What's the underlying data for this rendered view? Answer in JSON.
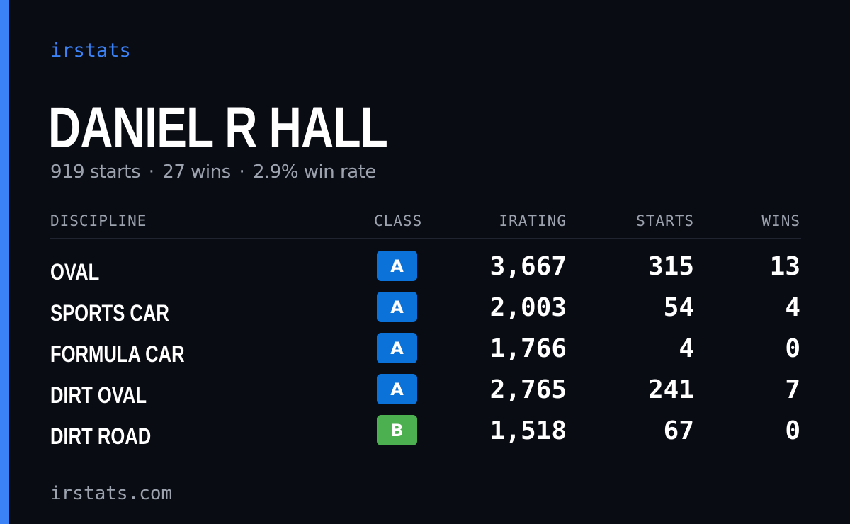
{
  "brand": "irstats",
  "player": {
    "name": "DANIEL R HALL"
  },
  "summary": {
    "starts": "919 starts",
    "wins": "27 wins",
    "win_rate": "2.9% win rate",
    "separator": "·"
  },
  "table": {
    "headers": {
      "discipline": "DISCIPLINE",
      "class": "CLASS",
      "irating": "IRATING",
      "starts": "STARTS",
      "wins": "WINS"
    },
    "rows": [
      {
        "discipline": "OVAL",
        "class": "A",
        "class_color": "#0a72d8",
        "irating": "3,667",
        "starts": "315",
        "wins": "13"
      },
      {
        "discipline": "SPORTS CAR",
        "class": "A",
        "class_color": "#0a72d8",
        "irating": "2,003",
        "starts": "54",
        "wins": "4"
      },
      {
        "discipline": "FORMULA CAR",
        "class": "A",
        "class_color": "#0a72d8",
        "irating": "1,766",
        "starts": "4",
        "wins": "0"
      },
      {
        "discipline": "DIRT OVAL",
        "class": "A",
        "class_color": "#0a72d8",
        "irating": "2,765",
        "starts": "241",
        "wins": "7"
      },
      {
        "discipline": "DIRT ROAD",
        "class": "B",
        "class_color": "#4caf50",
        "irating": "1,518",
        "starts": "67",
        "wins": "0"
      }
    ]
  },
  "footer": {
    "url": "irstats.com"
  },
  "colors": {
    "background": "#0a0c13",
    "accent": "#3b82f6",
    "muted_text": "#9ca3af",
    "class_a": "#0a72d8",
    "class_b": "#4caf50"
  }
}
